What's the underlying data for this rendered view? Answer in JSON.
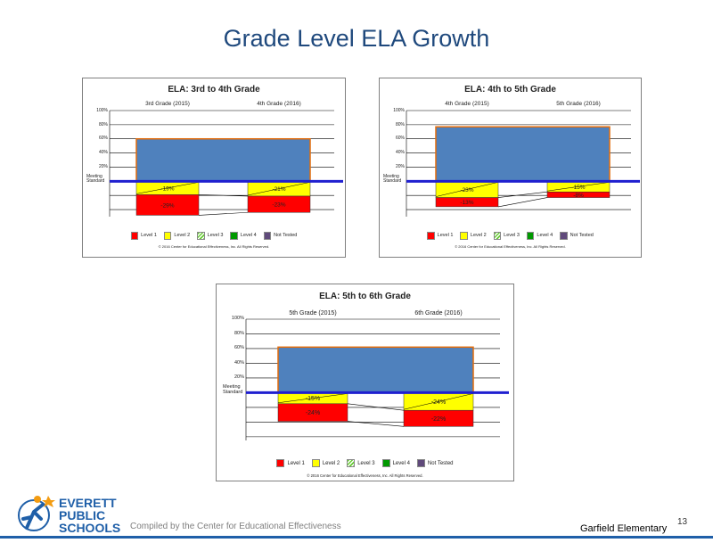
{
  "slide": {
    "title": "Grade Level ELA Growth",
    "footer_compiled": "Compiled by the Center for Educational Effectiveness",
    "footer_school": "Garfield Elementary",
    "page_number": "13",
    "logo_lines": [
      "EVERETT",
      "PUBLIC",
      "SCHOOLS"
    ]
  },
  "colors": {
    "title": "#1f497d",
    "meeting_block": "#4f81bd",
    "meeting_border": "#e46c0a",
    "level1": "#ff0000",
    "level2": "#ffff00",
    "level3": "#66cc33",
    "level4": "#009900",
    "not_tested": "#604a7b",
    "standard_line": "#1f1fd0"
  },
  "legend": [
    "Level 1",
    "Level 2",
    "Level 3",
    "Level 4",
    "Not Tested"
  ],
  "copyright": "© 2016 Center for Educational Effectiveness, Inc. All Rights Reserved.",
  "chart_data": [
    {
      "type": "bar",
      "title": "ELA: 3rd to 4th Grade",
      "categories": [
        "3rd Grade (2015)",
        "4th Grade (2016)"
      ],
      "y_ticks": [
        "100%",
        "80%",
        "60%",
        "40%",
        "20%"
      ],
      "meeting_label": [
        "Meeting",
        "Standard"
      ],
      "ylim": [
        -50,
        100
      ],
      "meeting_standard": 60,
      "series": [
        {
          "name": "Level 2",
          "values": [
            -19,
            -21
          ],
          "labels": [
            "-19%",
            "-21%"
          ]
        },
        {
          "name": "Level 1",
          "values": [
            -29,
            -23
          ],
          "labels": [
            "-29%",
            "-23%"
          ]
        }
      ]
    },
    {
      "type": "bar",
      "title": "ELA: 4th to 5th Grade",
      "categories": [
        "4th Grade (2015)",
        "5th Grade (2016)"
      ],
      "y_ticks": [
        "100%",
        "80%",
        "60%",
        "40%",
        "20%"
      ],
      "meeting_label": [
        "Meeting",
        "Standard"
      ],
      "ylim": [
        -50,
        100
      ],
      "meeting_standard": 77,
      "series": [
        {
          "name": "Level 2",
          "values": [
            -23,
            -15
          ],
          "labels": [
            "-23%",
            "-15%"
          ]
        },
        {
          "name": "Level 1",
          "values": [
            -13,
            -8
          ],
          "labels": [
            "-13%",
            "-8%"
          ]
        }
      ]
    },
    {
      "type": "bar",
      "title": "ELA: 5th to 6th Grade",
      "categories": [
        "5th Grade (2015)",
        "6th Grade (2016)"
      ],
      "y_ticks": [
        "100%",
        "80%",
        "60%",
        "40%",
        "20%"
      ],
      "meeting_label": [
        "Meeting",
        "Standard"
      ],
      "ylim": [
        -65,
        100
      ],
      "meeting_standard": 62,
      "series": [
        {
          "name": "Level 2",
          "values": [
            -15,
            -24
          ],
          "labels": [
            "-15%",
            "-24%"
          ]
        },
        {
          "name": "Level 1",
          "values": [
            -24,
            -22
          ],
          "labels": [
            "-24%",
            "-22%"
          ]
        }
      ]
    }
  ]
}
